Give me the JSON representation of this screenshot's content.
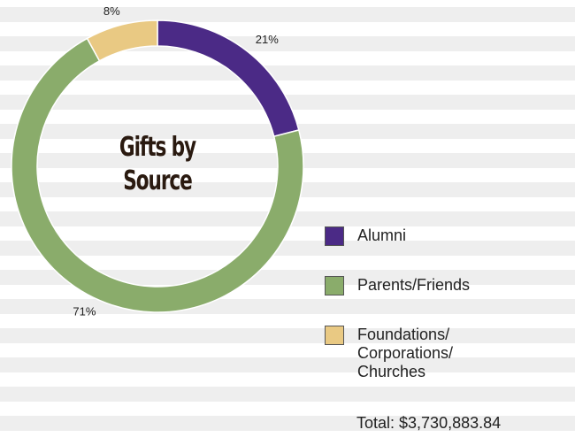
{
  "chart_data": {
    "type": "donut",
    "title": "Gifts by Source",
    "categories": [
      "Alumni",
      "Parents/Friends",
      "Foundations/\nCorporations/\nChurches"
    ],
    "values": [
      21,
      71,
      8
    ],
    "value_labels": [
      "21%",
      "71%",
      "8%"
    ],
    "colors": [
      "#4b2a86",
      "#8aac6b",
      "#e9c983"
    ],
    "annotation": "Total: $3,730,883.84"
  }
}
